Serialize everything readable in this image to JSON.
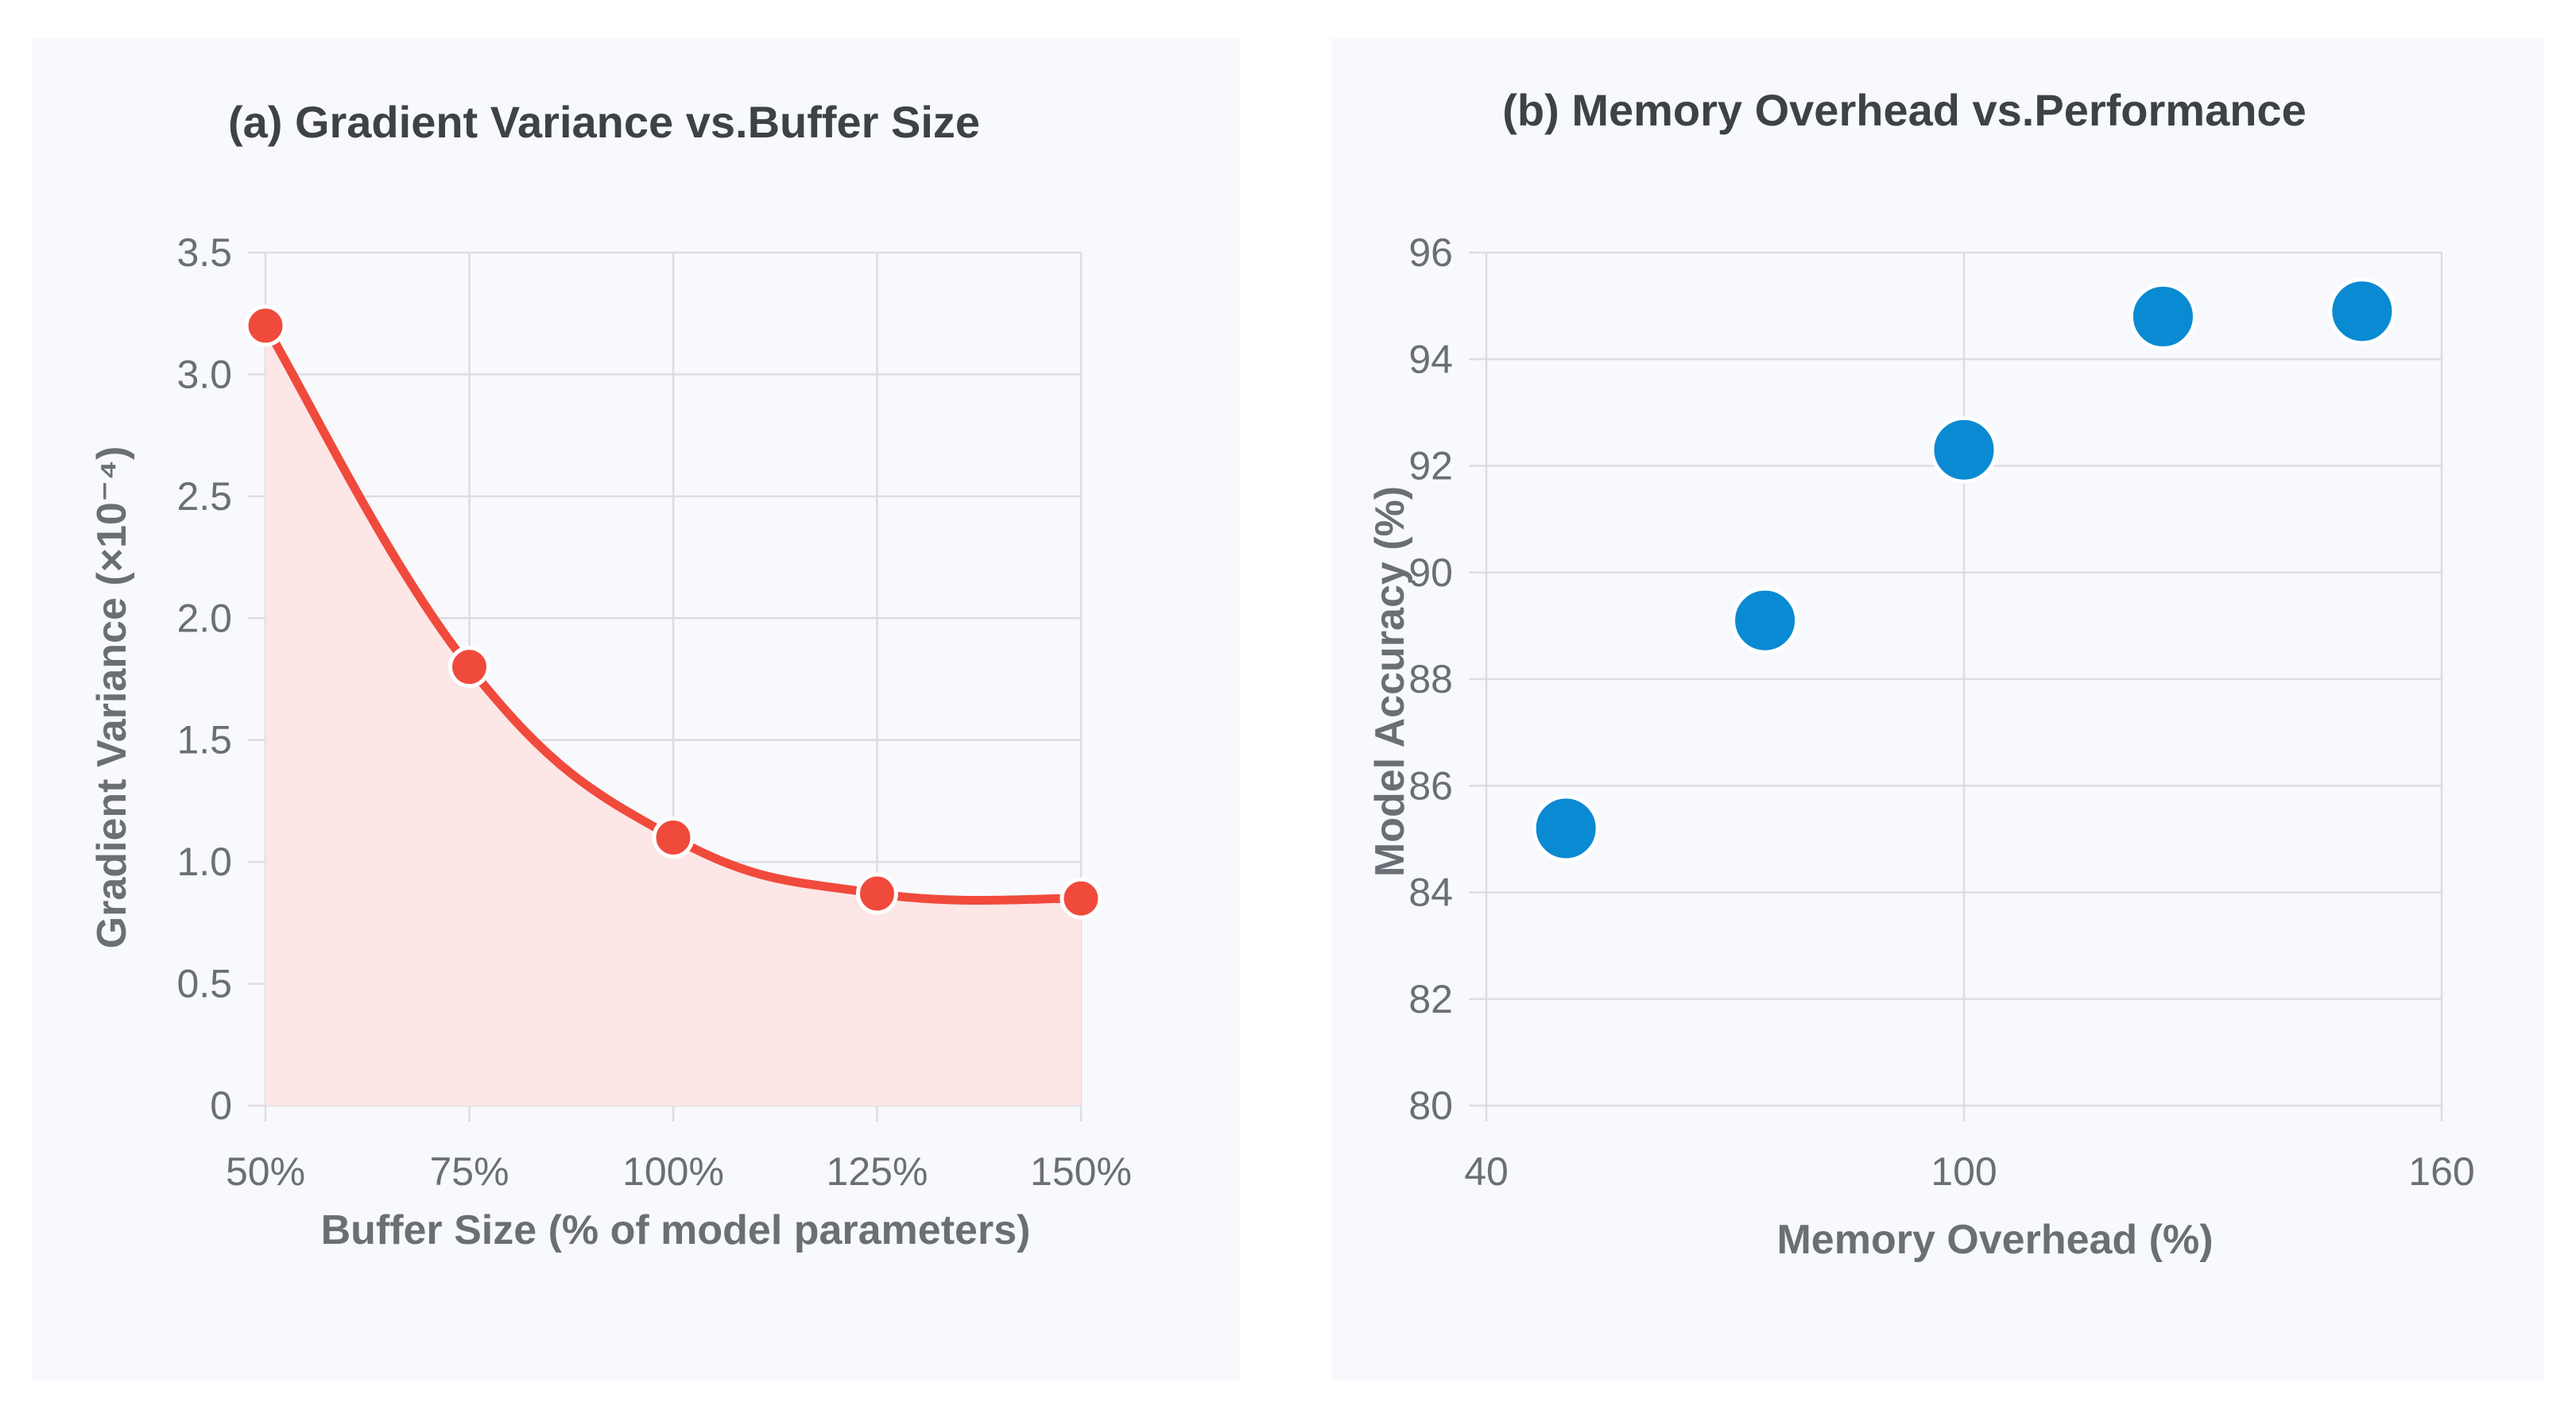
{
  "chart_data": [
    {
      "type": "line",
      "title": "(a) Gradient Variance vs.Buffer Size",
      "xlabel": "Buffer Size (% of model parameters)",
      "ylabel": "Gradient Variance (×10⁻⁴)",
      "categories": [
        "50%",
        "75%",
        "100%",
        "125%",
        "150%"
      ],
      "values": [
        3.2,
        1.8,
        1.1,
        0.87,
        0.85
      ],
      "ylim": [
        0,
        3.5
      ],
      "yticks": [
        0,
        0.5,
        1.0,
        1.5,
        2.0,
        2.5,
        3.0,
        3.5
      ],
      "ytick_labels": [
        "0",
        "0.5",
        "1.0",
        "1.5",
        "2.0",
        "2.5",
        "3.0",
        "3.5"
      ],
      "grid": true,
      "fill": true,
      "colors": {
        "line": "#f04a3c",
        "fill": "#fde6e6",
        "point_border": "#ffffff"
      }
    },
    {
      "type": "scatter",
      "title": "(b) Memory Overhead vs.Performance",
      "xlabel": "Memory Overhead (%)",
      "ylabel": "Model Accuracy (%)",
      "x": [
        50,
        75,
        100,
        125,
        150
      ],
      "y": [
        85.2,
        89.1,
        92.3,
        94.8,
        94.9
      ],
      "xlim": [
        40,
        160
      ],
      "ylim": [
        80,
        96
      ],
      "xticks": [
        40,
        100,
        160
      ],
      "xtick_labels": [
        "40",
        "100",
        "160"
      ],
      "yticks": [
        80,
        82,
        84,
        86,
        88,
        90,
        92,
        94,
        96
      ],
      "ytick_labels": [
        "80",
        "82",
        "84",
        "86",
        "88",
        "90",
        "92",
        "94",
        "96"
      ],
      "grid": true,
      "colors": {
        "point": "#0a8ad2",
        "point_border": "#ffffff"
      }
    }
  ]
}
